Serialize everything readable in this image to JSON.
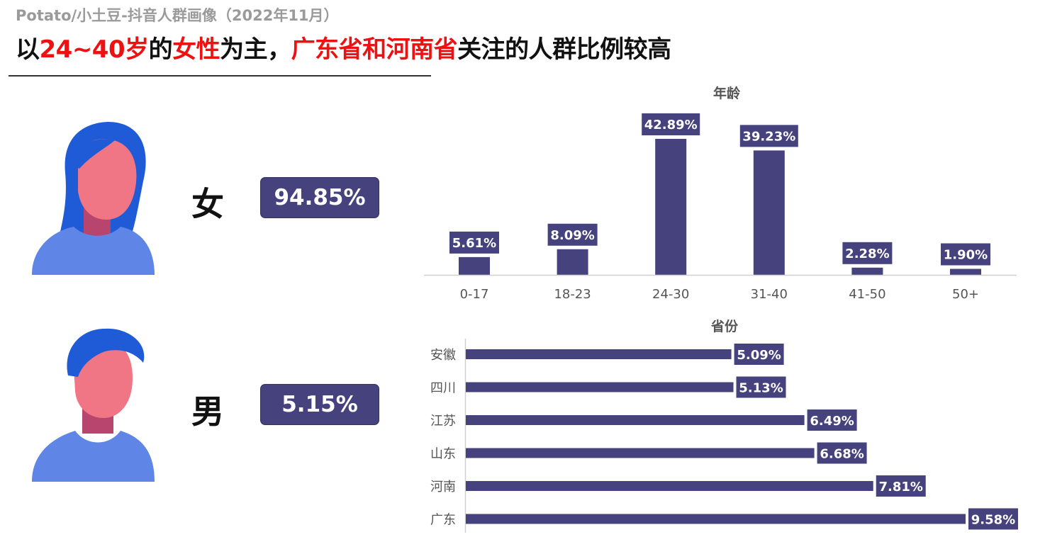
{
  "header": {
    "subtitle": "Potato/小土豆-抖音人群画像（2022年11月）",
    "headline_parts": [
      {
        "text": "以",
        "highlight": false
      },
      {
        "text": "24~40岁",
        "highlight": true
      },
      {
        "text": "的",
        "highlight": false
      },
      {
        "text": "女性",
        "highlight": true
      },
      {
        "text": "为主，",
        "highlight": false
      },
      {
        "text": "广东省和河南省",
        "highlight": true
      },
      {
        "text": "关注的人群比例较高",
        "highlight": false
      }
    ]
  },
  "gender": {
    "female": {
      "label": "女",
      "value": "94.85%"
    },
    "male": {
      "label": "男",
      "value": "5.15%"
    }
  },
  "colors": {
    "bar": "#45427e",
    "highlight": "#ee1111",
    "avatar_hair": "#1f5bd6",
    "avatar_face": "#f07585",
    "avatar_shirt": "#5f86e6",
    "avatar_neck_shadow": "#b8456e"
  },
  "chart_data": [
    {
      "type": "bar",
      "title": "年龄",
      "categories": [
        "0-17",
        "18-23",
        "24-30",
        "31-40",
        "41-50",
        "50+"
      ],
      "values": [
        5.61,
        8.09,
        42.89,
        39.23,
        2.28,
        1.9
      ],
      "labels": [
        "5.61%",
        "8.09%",
        "42.89%",
        "39.23%",
        "2.28%",
        "1.90%"
      ],
      "ylim": [
        0,
        42.89
      ],
      "grid": false
    },
    {
      "type": "bar",
      "orientation": "horizontal",
      "title": "省份",
      "categories": [
        "安徽",
        "四川",
        "江苏",
        "山东",
        "河南",
        "广东"
      ],
      "values": [
        5.09,
        5.13,
        6.49,
        6.68,
        7.81,
        9.58
      ],
      "labels": [
        "5.09%",
        "5.13%",
        "6.49%",
        "6.68%",
        "7.81%",
        "9.58%"
      ],
      "xlim": [
        0,
        9.58
      ],
      "grid": false
    }
  ]
}
